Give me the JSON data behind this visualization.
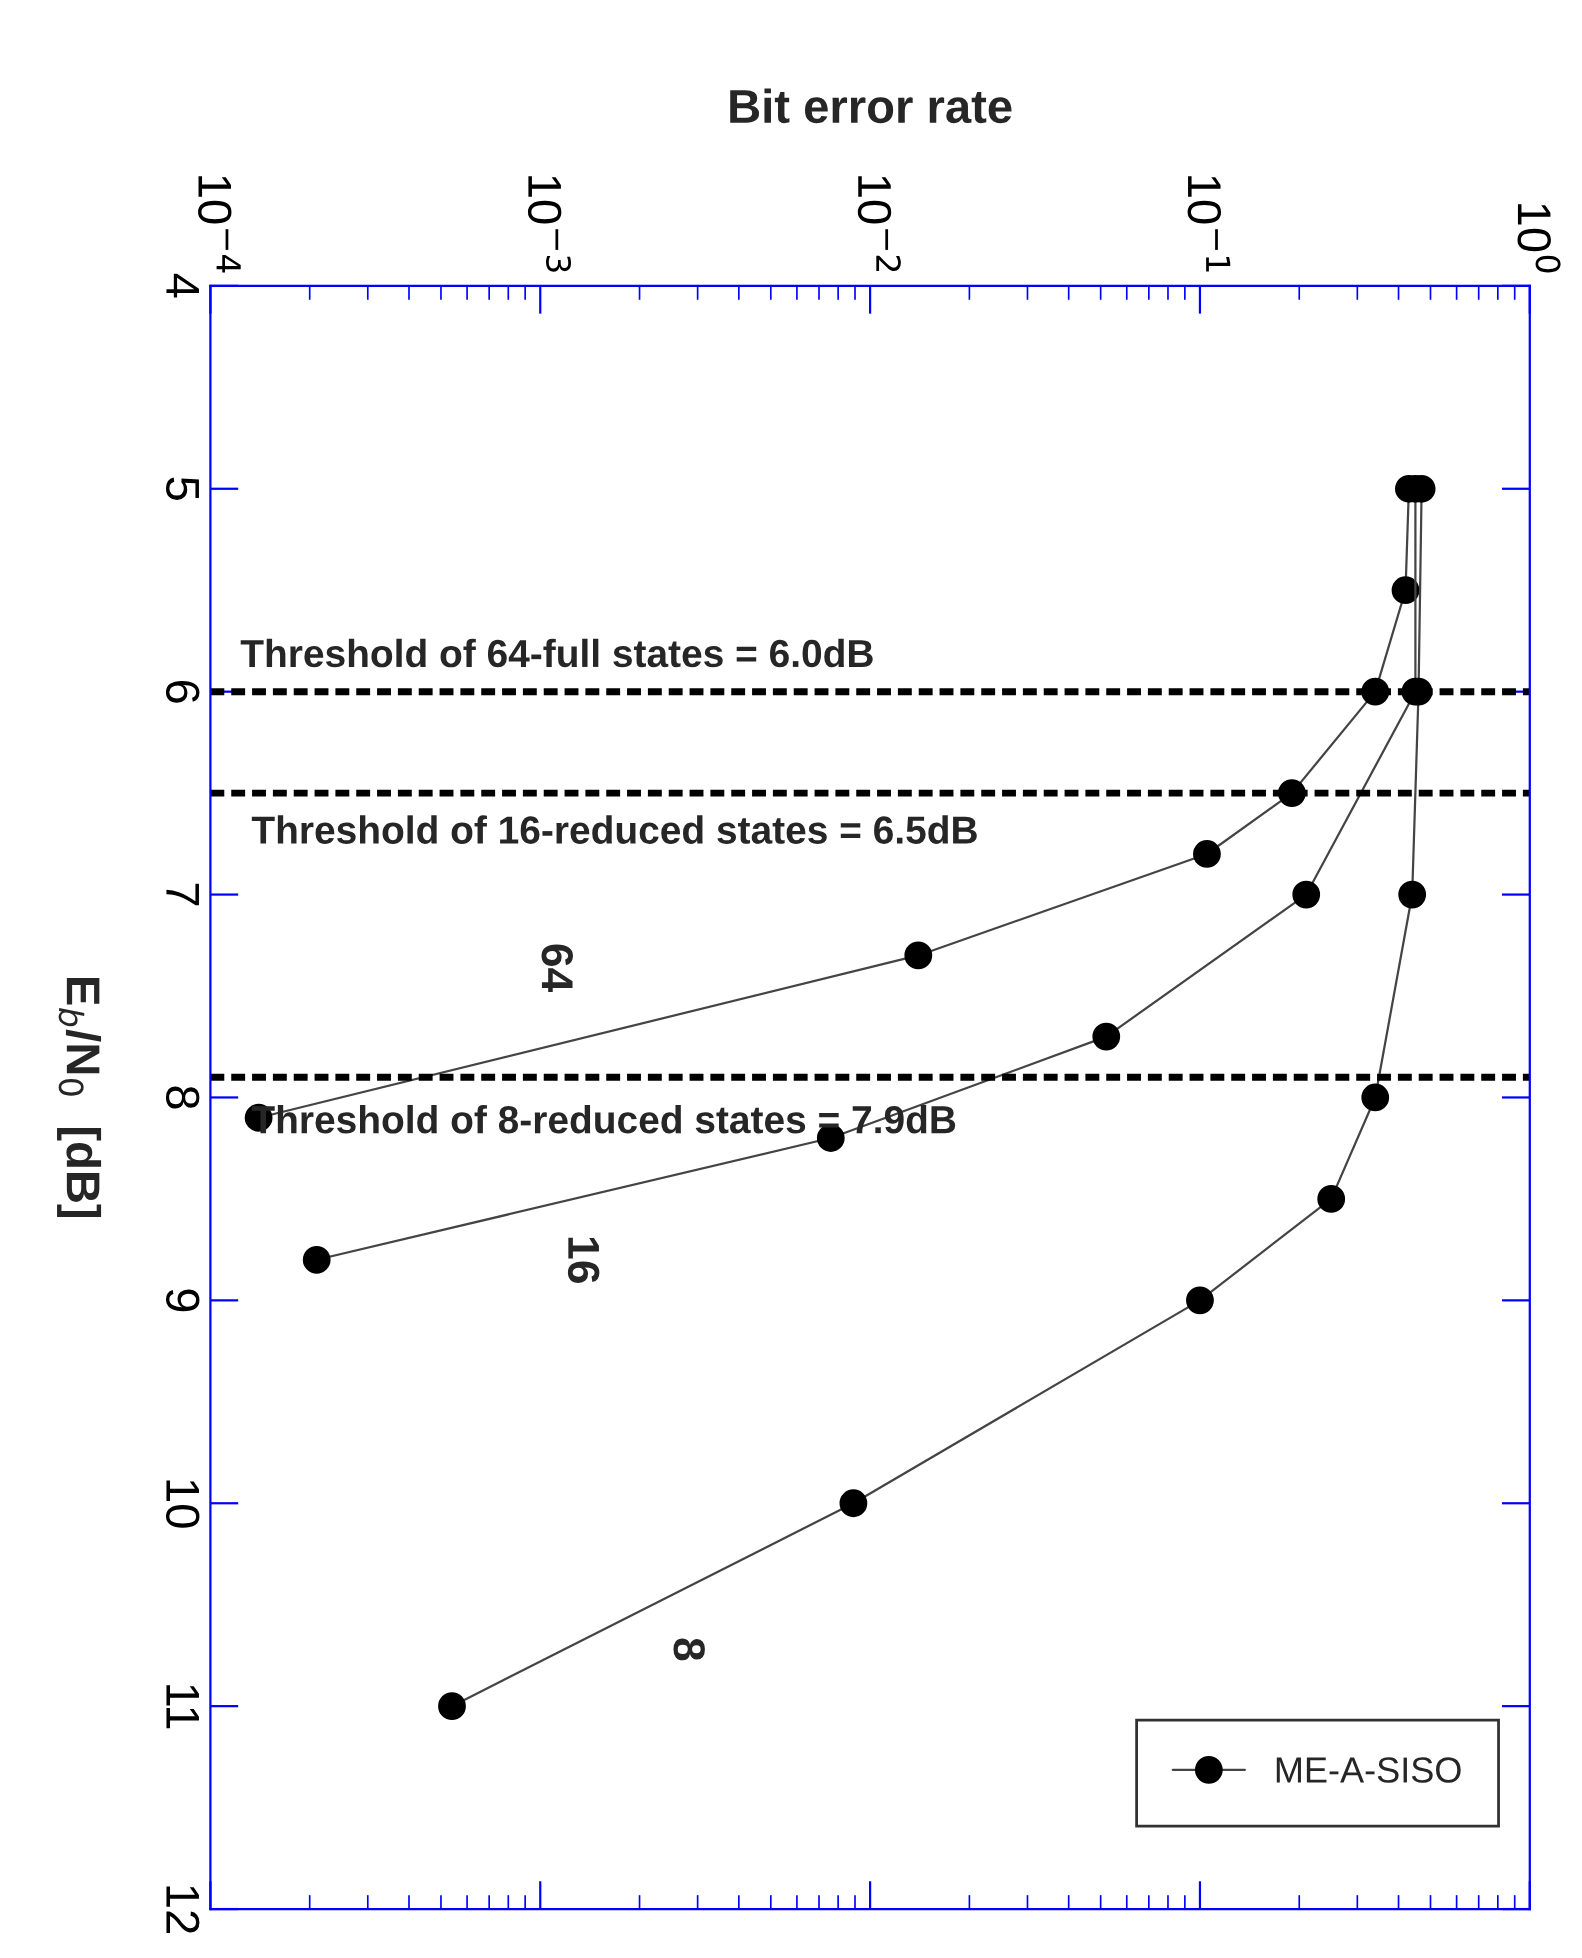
{
  "chart_data": {
    "type": "line",
    "xlabel": "Bit error rate",
    "ylabel": "E$_{b}$/N$_{0}$  [dB]",
    "log": "x",
    "xlim": [
      0.0001,
      1
    ],
    "ylim": [
      12,
      4
    ],
    "xticks": [
      {
        "value": 0.0001,
        "label": "10$^{−4}$"
      },
      {
        "value": 0.001,
        "label": "10$^{−3}$"
      },
      {
        "value": 0.01,
        "label": "10$^{−2}$"
      },
      {
        "value": 0.1,
        "label": "10$^{−1}$"
      },
      {
        "value": 1,
        "label": "10$^{0}$"
      }
    ],
    "yticks": [
      4,
      5,
      6,
      7,
      8,
      9,
      10,
      11,
      12
    ],
    "marker": "circle",
    "line_style": "solid",
    "grid": false,
    "legend": "bottom right",
    "series": [
      {
        "name": "ME-A-SISO",
        "color": "#000000",
        "x": [
          0.43,
          0.42,
          0.34,
          0.19,
          0.105,
          0.014,
          0.00014
        ],
        "values": [
          5,
          5.5,
          6,
          6.5,
          6.8,
          7.3,
          8.1
        ]
      },
      {
        "color": "#000000",
        "x": [
          0.45,
          0.45,
          0.21,
          0.052,
          0.0076,
          0.00021
        ],
        "values": [
          5,
          6,
          7,
          7.7,
          8.2,
          8.8
        ]
      },
      {
        "color": "#000000",
        "x": [
          0.47,
          0.46,
          0.44,
          0.34,
          0.25,
          0.1,
          0.0089,
          0.00054
        ],
        "values": [
          5,
          6,
          7,
          8,
          8.5,
          9,
          10,
          11
        ]
      }
    ],
    "ref_lines": [
      {
        "axis": "y",
        "value": 6.0,
        "label": "Threshold of 64-full states = 6.0dB",
        "color": "#000000",
        "line_style": "dashed"
      },
      {
        "axis": "y",
        "value": 6.5,
        "label": "Threshold of 16-reduced states = 6.5dB",
        "color": "#000000",
        "line_style": "dashed"
      },
      {
        "axis": "y",
        "value": 7.9,
        "label": "Threshold of 8-reduced states = 7.9dB",
        "color": "#000000",
        "line_style": "dashed"
      }
    ],
    "annotations": [
      "64",
      "16",
      "8"
    ]
  }
}
